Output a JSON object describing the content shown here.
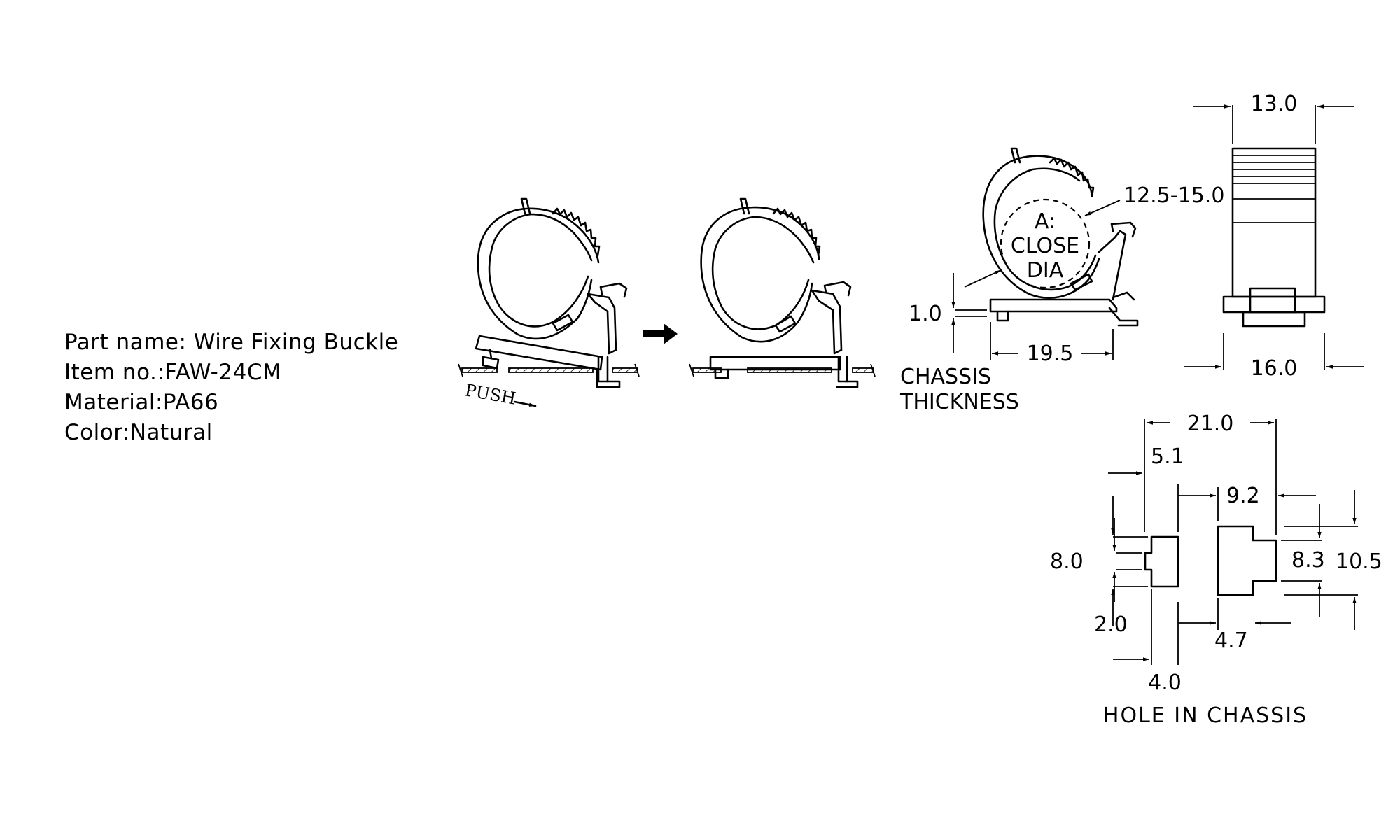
{
  "part_info": {
    "part_name": "Part name: Wire Fixing Buckle",
    "item_no": "Item no.:FAW-24CM",
    "material": "Material:PA66",
    "color": "Color:Natural"
  },
  "diagram": {
    "push_label": "PUSH",
    "close_dia_line1": "A:",
    "close_dia_line2": "CLOSE",
    "close_dia_line3": "DIA",
    "chassis_thickness_line1": "CHASSIS",
    "chassis_thickness_line2": "THICKNESS",
    "hole_in_chassis": "HOLE IN CHASSIS"
  },
  "dimensions": {
    "side_width": "13.0",
    "side_base": "16.0",
    "close_dia": "12.5-15.0",
    "thickness": "1.0",
    "base_length": "19.5",
    "hole_total": "21.0",
    "hole_small_w": "5.1",
    "hole_big_w": "9.2",
    "hole_small_h": "8.0",
    "hole_small_tab": "2.0",
    "hole_gap": "4.0",
    "hole_big_tab": "4.7",
    "hole_big_h_inner": "8.3",
    "hole_big_h": "10.5"
  }
}
